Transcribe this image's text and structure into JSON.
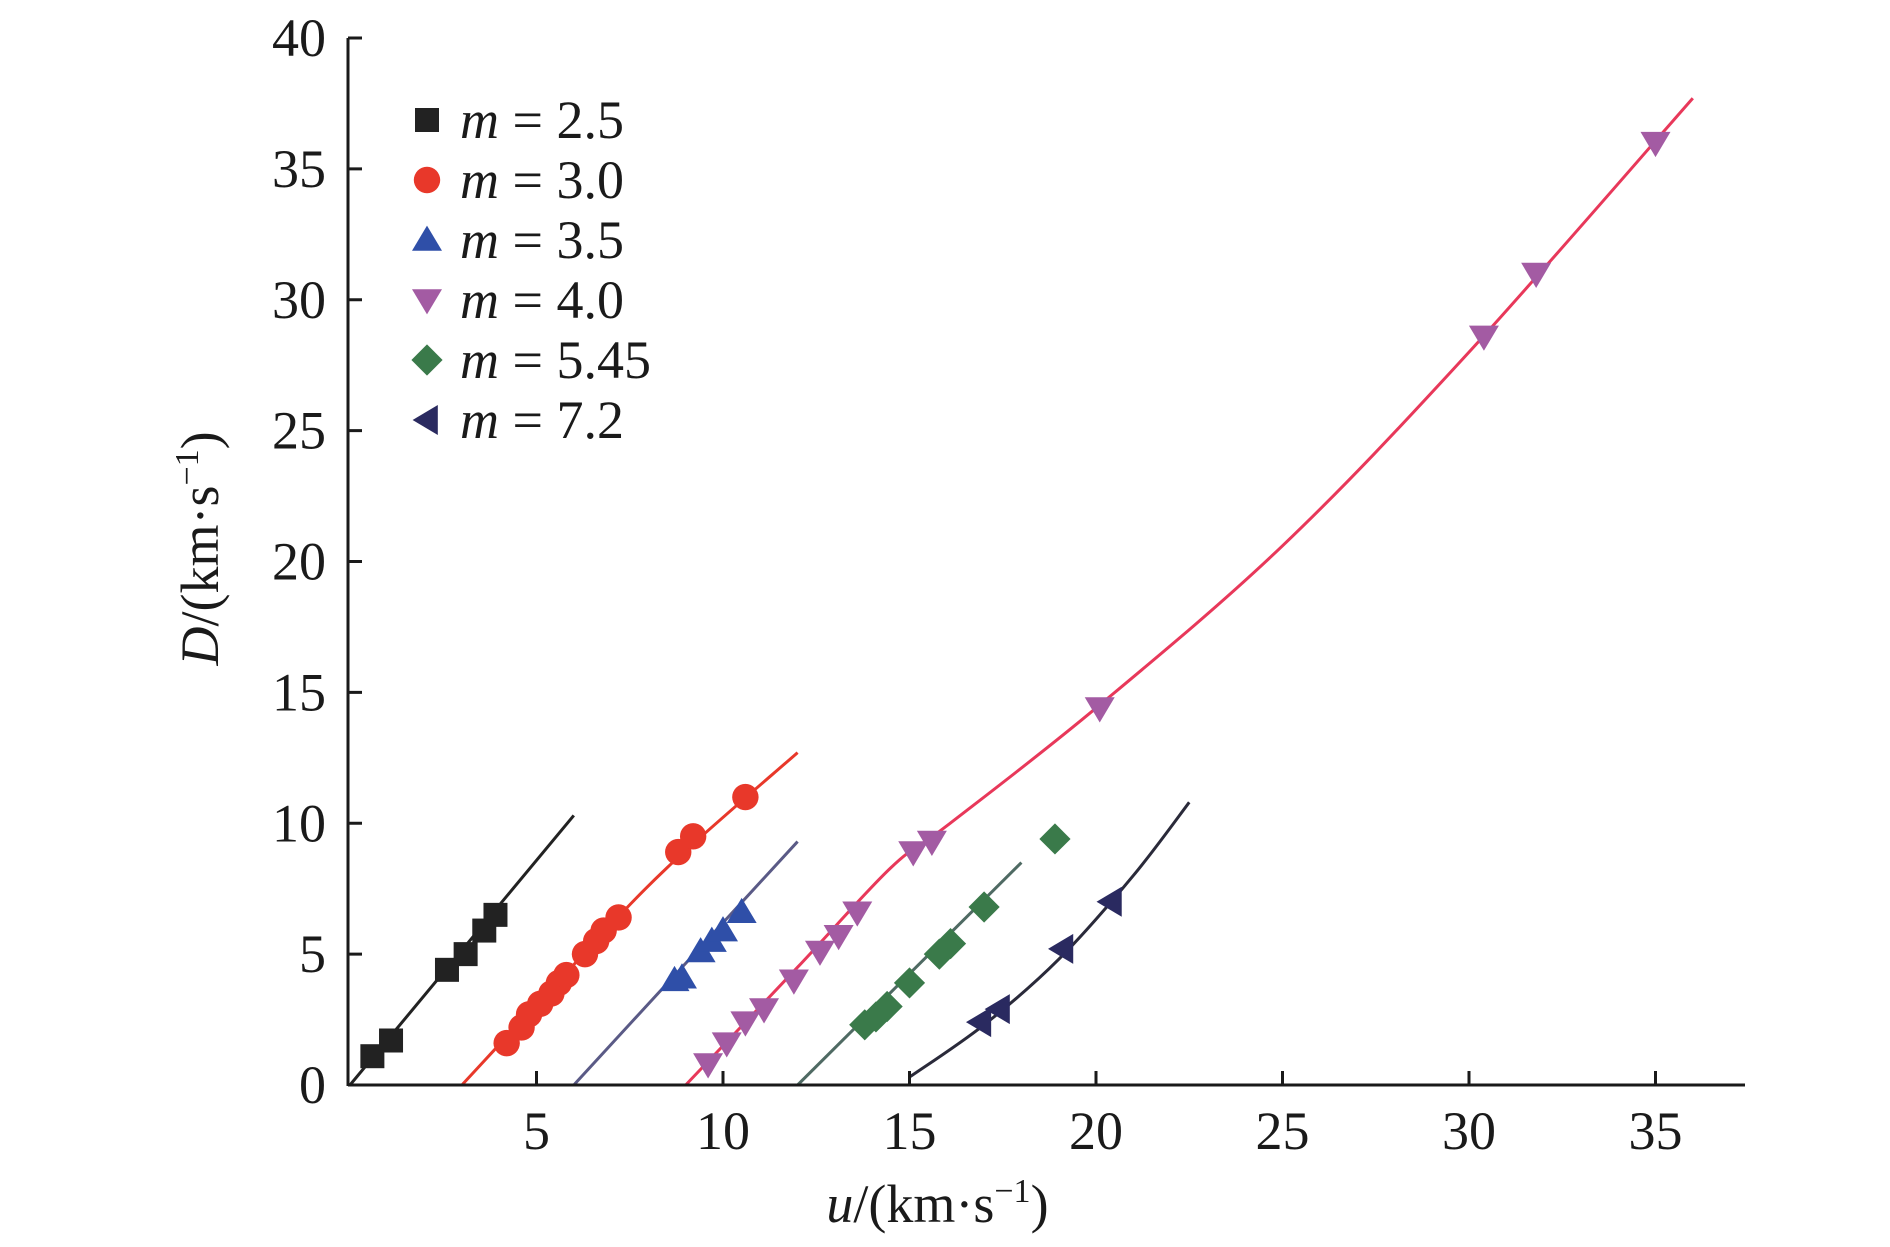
{
  "chart_data": {
    "type": "scatter",
    "title": "",
    "xlabel": {
      "var": "u",
      "unit": "/(km·s",
      "exp": "−1",
      "close": ")"
    },
    "ylabel": {
      "var": "D",
      "unit": "/(km·s",
      "exp": "−1",
      "close": ")"
    },
    "xlim": [
      0,
      37.5
    ],
    "ylim": [
      0,
      40
    ],
    "xticks": [
      5,
      10,
      15,
      20,
      25,
      30,
      35
    ],
    "yticks": [
      0,
      5,
      10,
      15,
      20,
      25,
      30,
      35,
      40
    ],
    "grid": false,
    "legend_position": "top-left",
    "series": [
      {
        "name": "m = 2.5",
        "name_var": "m",
        "name_rest": " = 2.5",
        "marker": "square",
        "color": "#222222",
        "line_color": "#222222",
        "points": [
          [
            0.6,
            1.1
          ],
          [
            1.1,
            1.7
          ],
          [
            2.6,
            4.4
          ],
          [
            3.1,
            5.0
          ],
          [
            3.6,
            5.9
          ],
          [
            3.9,
            6.5
          ]
        ],
        "fit": [
          [
            0.0,
            0.0
          ],
          [
            6.0,
            10.3
          ]
        ]
      },
      {
        "name": "m = 3.0",
        "name_var": "m",
        "name_rest": " = 3.0",
        "marker": "circle",
        "color": "#e8382a",
        "line_color": "#e8382a",
        "line_color2": "#8c6a6a",
        "points": [
          [
            4.2,
            1.6
          ],
          [
            4.6,
            2.2
          ],
          [
            4.8,
            2.7
          ],
          [
            5.1,
            3.1
          ],
          [
            5.4,
            3.5
          ],
          [
            5.6,
            3.9
          ],
          [
            5.8,
            4.2
          ],
          [
            6.3,
            5.0
          ],
          [
            6.6,
            5.5
          ],
          [
            6.8,
            5.9
          ],
          [
            7.2,
            6.4
          ],
          [
            8.8,
            8.9
          ],
          [
            9.2,
            9.5
          ],
          [
            10.6,
            11.0
          ]
        ],
        "fit": [
          [
            3.0,
            0.0
          ],
          [
            6.0,
            4.6
          ],
          [
            8.5,
            8.3
          ],
          [
            12.0,
            12.7
          ]
        ]
      },
      {
        "name": "m = 3.5",
        "name_var": "m",
        "name_rest": " = 3.5",
        "marker": "triangle-up",
        "color": "#2f4fa8",
        "line_color": "#5a5a86",
        "points": [
          [
            8.7,
            4.0
          ],
          [
            8.9,
            4.1
          ],
          [
            9.4,
            5.1
          ],
          [
            9.7,
            5.5
          ],
          [
            10.0,
            5.9
          ],
          [
            10.5,
            6.6
          ]
        ],
        "fit": [
          [
            6.0,
            0.0
          ],
          [
            12.0,
            9.3
          ]
        ]
      },
      {
        "name": "m = 4.0",
        "name_var": "m",
        "name_rest": " = 4.0",
        "marker": "triangle-down",
        "color": "#a35ba3",
        "line_color": "#e8385a",
        "line_color2": "#8a7a8a",
        "points": [
          [
            9.6,
            0.8
          ],
          [
            10.1,
            1.6
          ],
          [
            10.6,
            2.4
          ],
          [
            11.1,
            2.9
          ],
          [
            11.9,
            4.0
          ],
          [
            12.6,
            5.1
          ],
          [
            13.1,
            5.7
          ],
          [
            13.6,
            6.6
          ],
          [
            15.1,
            8.9
          ],
          [
            15.6,
            9.3
          ],
          [
            20.1,
            14.4
          ],
          [
            30.4,
            28.6
          ],
          [
            31.8,
            31.0
          ],
          [
            35.0,
            36.0
          ]
        ],
        "fit": [
          [
            9.0,
            0.0
          ],
          [
            12.0,
            4.5
          ],
          [
            14.5,
            8.3
          ],
          [
            16.0,
            9.9
          ],
          [
            20.0,
            14.4
          ],
          [
            25.0,
            20.6
          ],
          [
            30.0,
            28.0
          ],
          [
            36.0,
            37.7
          ]
        ]
      },
      {
        "name": "m = 5.45",
        "name_var": "m",
        "name_rest": " = 5.45",
        "marker": "diamond",
        "color": "#3a7a4a",
        "line_color": "#4f6a63",
        "points": [
          [
            13.8,
            2.3
          ],
          [
            14.1,
            2.6
          ],
          [
            14.4,
            3.0
          ],
          [
            15.0,
            3.9
          ],
          [
            15.8,
            5.0
          ],
          [
            16.1,
            5.4
          ],
          [
            17.0,
            6.8
          ],
          [
            18.9,
            9.4
          ]
        ],
        "fit": [
          [
            12.0,
            0.0
          ],
          [
            18.0,
            8.5
          ]
        ]
      },
      {
        "name": "m = 7.2",
        "name_var": "m",
        "name_rest": " = 7.2",
        "marker": "triangle-left",
        "color": "#2a2a60",
        "line_color": "#2a2a3a",
        "points": [
          [
            16.9,
            2.4
          ],
          [
            17.4,
            2.9
          ],
          [
            19.1,
            5.2
          ],
          [
            20.4,
            7.0
          ]
        ],
        "fit": [
          [
            15.0,
            0.3
          ],
          [
            17.0,
            2.3
          ],
          [
            19.0,
            4.8
          ],
          [
            21.0,
            8.0
          ],
          [
            22.5,
            10.8
          ]
        ]
      }
    ]
  }
}
